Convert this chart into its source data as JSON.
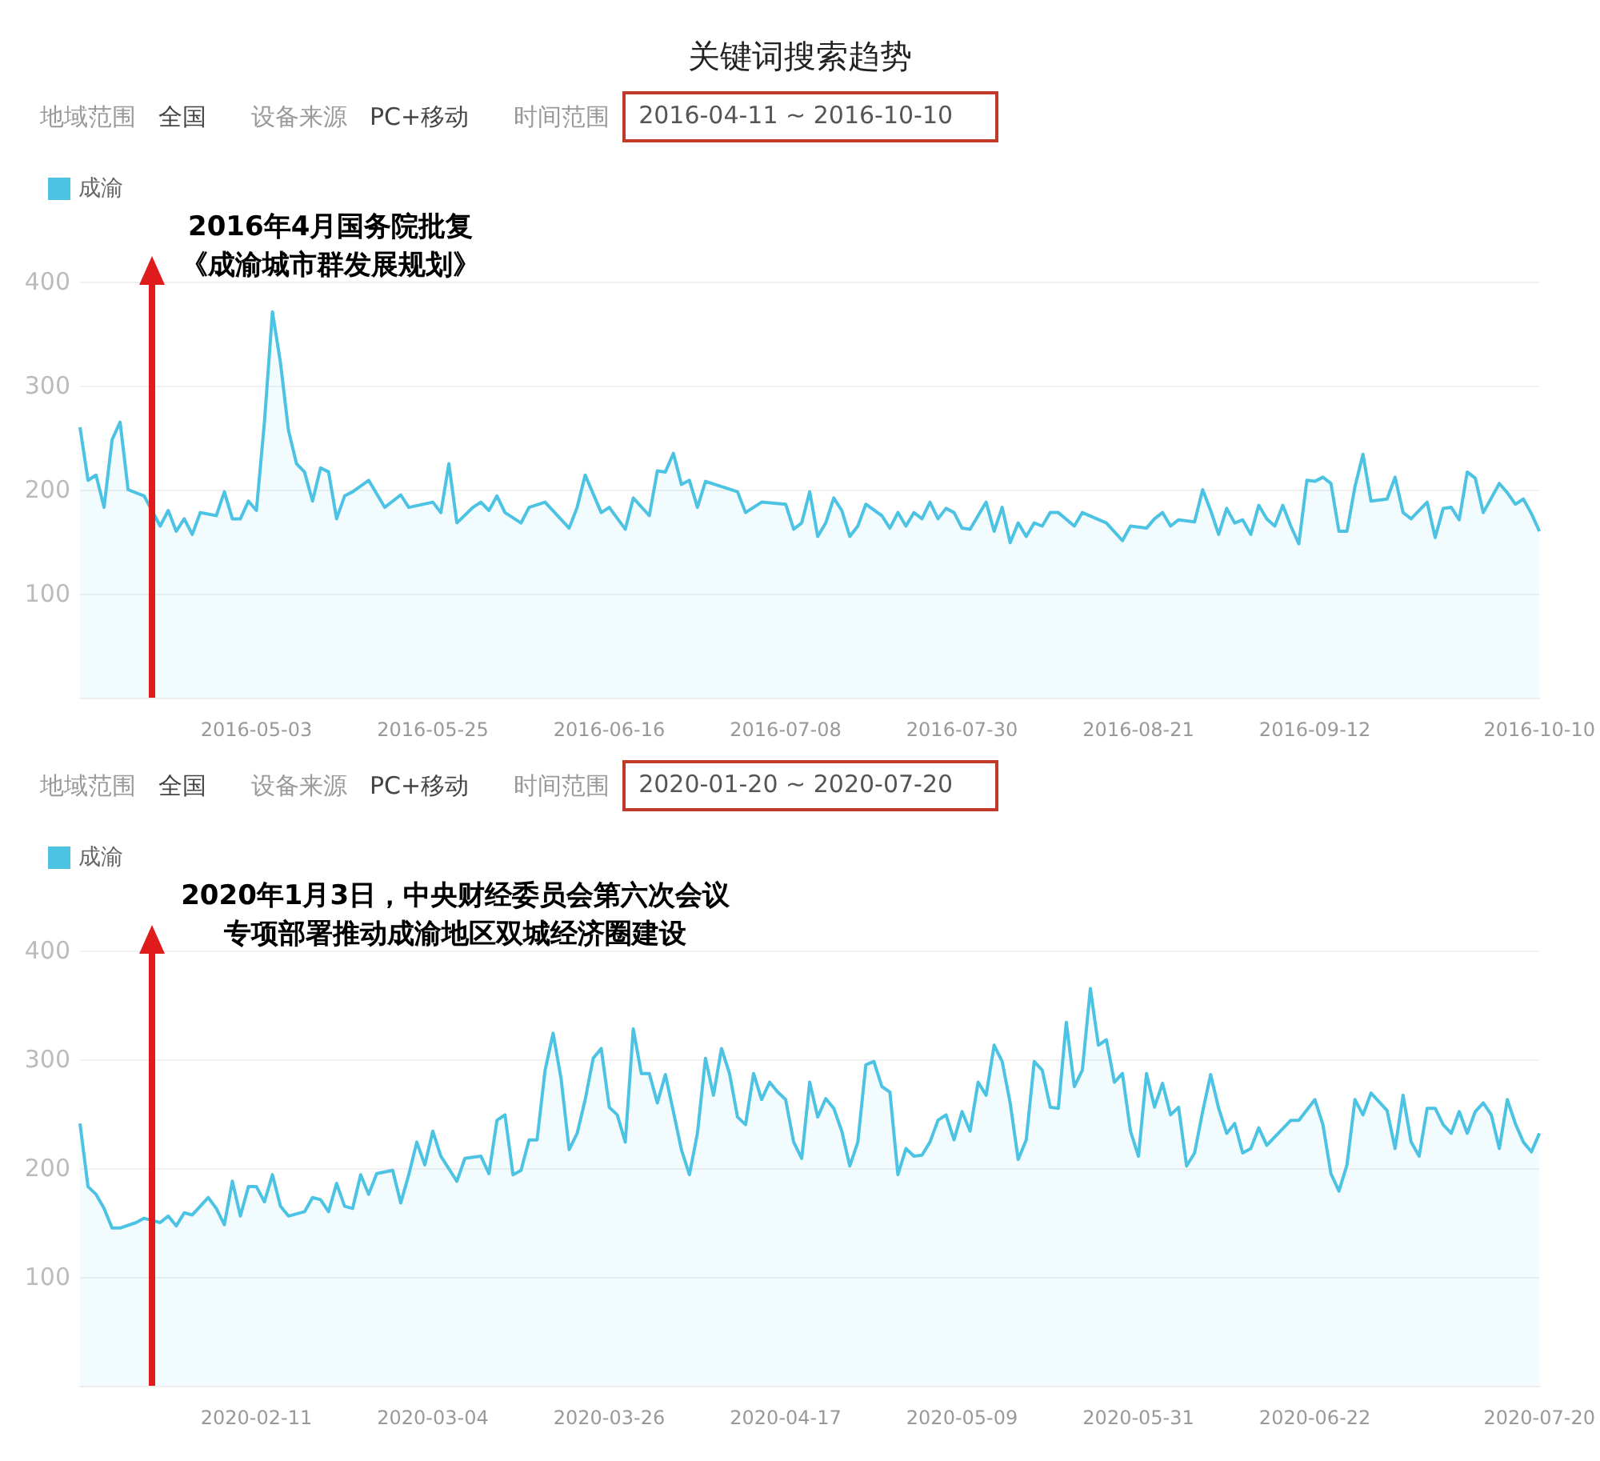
{
  "chart_data": [
    {
      "type": "area",
      "title": "关键词搜索趋势",
      "annotations": [
        "地域范围",
        "全国",
        "设备来源",
        "PC+移动",
        "时间范围",
        "2016-04-11 ~ 2016-10-10",
        "2016年4月国务院批复",
        "《成渝城市群发展规划》"
      ],
      "x": [
        "2016-04-11",
        "2016-04-12",
        "2016-04-13",
        "2016-04-14",
        "2016-04-15",
        "2016-04-16",
        "2016-04-17",
        "2016-04-19",
        "2016-04-21",
        "2016-04-22",
        "2016-04-23",
        "2016-04-24",
        "2016-04-25",
        "2016-04-26",
        "2016-04-28",
        "2016-04-29",
        "2016-04-30",
        "2016-05-01",
        "2016-05-02",
        "2016-05-03",
        "2016-05-04",
        "2016-05-05",
        "2016-05-06",
        "2016-05-07",
        "2016-05-08",
        "2016-05-09",
        "2016-05-10",
        "2016-05-11",
        "2016-05-12",
        "2016-05-13",
        "2016-05-14",
        "2016-05-15",
        "2016-05-17",
        "2016-05-19",
        "2016-05-21",
        "2016-05-22",
        "2016-05-25",
        "2016-05-26",
        "2016-05-27",
        "2016-05-28",
        "2016-05-30",
        "2016-05-31",
        "2016-06-01",
        "2016-06-02",
        "2016-06-03",
        "2016-06-05",
        "2016-06-06",
        "2016-06-08",
        "2016-06-11",
        "2016-06-12",
        "2016-06-13",
        "2016-06-15",
        "2016-06-16",
        "2016-06-18",
        "2016-06-19",
        "2016-06-21",
        "2016-06-22",
        "2016-06-23",
        "2016-06-24",
        "2016-06-25",
        "2016-06-26",
        "2016-06-27",
        "2016-06-28",
        "2016-07-02",
        "2016-07-03",
        "2016-07-05",
        "2016-07-08",
        "2016-07-09",
        "2016-07-10",
        "2016-07-11",
        "2016-07-12",
        "2016-07-13",
        "2016-07-14",
        "2016-07-15",
        "2016-07-16",
        "2016-07-17",
        "2016-07-18",
        "2016-07-20",
        "2016-07-21",
        "2016-07-22",
        "2016-07-23",
        "2016-07-24",
        "2016-07-25",
        "2016-07-26",
        "2016-07-27",
        "2016-07-28",
        "2016-07-29",
        "2016-07-30",
        "2016-07-31",
        "2016-08-02",
        "2016-08-03",
        "2016-08-04",
        "2016-08-05",
        "2016-08-06",
        "2016-08-07",
        "2016-08-08",
        "2016-08-09",
        "2016-08-10",
        "2016-08-11",
        "2016-08-13",
        "2016-08-14",
        "2016-08-17",
        "2016-08-19",
        "2016-08-20",
        "2016-08-22",
        "2016-08-23",
        "2016-08-24",
        "2016-08-25",
        "2016-08-26",
        "2016-08-28",
        "2016-08-29",
        "2016-08-30",
        "2016-08-31",
        "2016-09-01",
        "2016-09-02",
        "2016-09-03",
        "2016-09-04",
        "2016-09-05",
        "2016-09-06",
        "2016-09-07",
        "2016-09-08",
        "2016-09-09",
        "2016-09-10",
        "2016-09-11",
        "2016-09-12",
        "2016-09-13",
        "2016-09-14",
        "2016-09-15",
        "2016-09-16",
        "2016-09-17",
        "2016-09-18",
        "2016-09-19",
        "2016-09-21",
        "2016-09-22",
        "2016-09-23",
        "2016-09-24",
        "2016-09-26",
        "2016-09-27",
        "2016-09-28",
        "2016-09-29",
        "2016-09-30",
        "2016-10-01",
        "2016-10-02",
        "2016-10-03",
        "2016-10-05",
        "2016-10-06",
        "2016-10-07",
        "2016-10-08",
        "2016-10-09",
        "2016-10-10"
      ],
      "series": [
        {
          "name": "成渝",
          "color": "#4cc3e3",
          "values": [
            260,
            209,
            214,
            183,
            248,
            265,
            200,
            194,
            165,
            180,
            160,
            172,
            157,
            178,
            175,
            198,
            172,
            172,
            189,
            180,
            265,
            371,
            322,
            257,
            225,
            217,
            189,
            221,
            217,
            172,
            194,
            198,
            209,
            183,
            195,
            183,
            188,
            178,
            225,
            168,
            183,
            188,
            180,
            194,
            178,
            168,
            183,
            188,
            163,
            183,
            214,
            178,
            183,
            162,
            192,
            175,
            218,
            217,
            235,
            205,
            209,
            183,
            208,
            198,
            178,
            188,
            186,
            162,
            168,
            198,
            155,
            168,
            192,
            180,
            155,
            165,
            186,
            175,
            163,
            178,
            165,
            178,
            172,
            188,
            172,
            182,
            178,
            163,
            162,
            188,
            160,
            183,
            149,
            168,
            155,
            168,
            165,
            178,
            178,
            165,
            178,
            168,
            151,
            165,
            163,
            172,
            178,
            165,
            171,
            169,
            200,
            180,
            157,
            182,
            168,
            171,
            157,
            185,
            172,
            165,
            185,
            165,
            148,
            209,
            208,
            212,
            206,
            160,
            160,
            203,
            234,
            189,
            191,
            212,
            178,
            172,
            188,
            154,
            182,
            183,
            171,
            217,
            211,
            178,
            206,
            197,
            186,
            191,
            177,
            160
          ]
        }
      ],
      "xlim": [
        "2016-04-11",
        "2016-10-10"
      ],
      "xticks": [
        "2016-05-03",
        "2016-05-25",
        "2016-06-16",
        "2016-07-08",
        "2016-07-30",
        "2016-08-21",
        "2016-09-12",
        "2016-10-10"
      ],
      "ylim": [
        0,
        400
      ],
      "yticks": [
        100,
        200,
        300,
        400
      ],
      "grid": "y",
      "legend": "top left",
      "marker": "none",
      "ref_lines": [
        {
          "axis": "x",
          "value": "2016-04-20",
          "color": "#e01b1b"
        }
      ]
    },
    {
      "type": "area",
      "annotations": [
        "地域范围",
        "全国",
        "设备来源",
        "PC+移动",
        "时间范围",
        "2020-01-20 ~ 2020-07-20",
        "2020年1月3日，中央财经委员会第六次会议",
        "专项部署推动成渝地区双城经济圈建设"
      ],
      "x": [
        "2020-01-20",
        "2020-01-21",
        "2020-01-22",
        "2020-01-23",
        "2020-01-24",
        "2020-01-25",
        "2020-01-27",
        "2020-01-28",
        "2020-01-30",
        "2020-01-31",
        "2020-02-01",
        "2020-02-02",
        "2020-02-03",
        "2020-02-05",
        "2020-02-06",
        "2020-02-07",
        "2020-02-08",
        "2020-02-09",
        "2020-02-10",
        "2020-02-11",
        "2020-02-12",
        "2020-02-13",
        "2020-02-14",
        "2020-02-15",
        "2020-02-17",
        "2020-02-18",
        "2020-02-19",
        "2020-02-20",
        "2020-02-21",
        "2020-02-22",
        "2020-02-23",
        "2020-02-24",
        "2020-02-25",
        "2020-02-26",
        "2020-02-28",
        "2020-02-29",
        "2020-03-01",
        "2020-03-02",
        "2020-03-03",
        "2020-03-04",
        "2020-03-05",
        "2020-03-07",
        "2020-03-08",
        "2020-03-10",
        "2020-03-11",
        "2020-03-12",
        "2020-03-13",
        "2020-03-14",
        "2020-03-15",
        "2020-03-16",
        "2020-03-17",
        "2020-03-18",
        "2020-03-19",
        "2020-03-20",
        "2020-03-21",
        "2020-03-22",
        "2020-03-23",
        "2020-03-24",
        "2020-03-25",
        "2020-03-26",
        "2020-03-27",
        "2020-03-28",
        "2020-03-29",
        "2020-03-30",
        "2020-03-31",
        "2020-04-01",
        "2020-04-02",
        "2020-04-03",
        "2020-04-04",
        "2020-04-05",
        "2020-04-06",
        "2020-04-07",
        "2020-04-08",
        "2020-04-09",
        "2020-04-10",
        "2020-04-11",
        "2020-04-12",
        "2020-04-13",
        "2020-04-14",
        "2020-04-15",
        "2020-04-16",
        "2020-04-17",
        "2020-04-18",
        "2020-04-19",
        "2020-04-20",
        "2020-04-21",
        "2020-04-22",
        "2020-04-23",
        "2020-04-24",
        "2020-04-25",
        "2020-04-26",
        "2020-04-27",
        "2020-04-28",
        "2020-04-29",
        "2020-04-30",
        "2020-05-01",
        "2020-05-02",
        "2020-05-03",
        "2020-05-04",
        "2020-05-05",
        "2020-05-06",
        "2020-05-07",
        "2020-05-08",
        "2020-05-09",
        "2020-05-10",
        "2020-05-11",
        "2020-05-12",
        "2020-05-13",
        "2020-05-14",
        "2020-05-15",
        "2020-05-16",
        "2020-05-17",
        "2020-05-18",
        "2020-05-19",
        "2020-05-20",
        "2020-05-21",
        "2020-05-22",
        "2020-05-23",
        "2020-05-24",
        "2020-05-25",
        "2020-05-26",
        "2020-05-27",
        "2020-05-28",
        "2020-05-29",
        "2020-05-30",
        "2020-05-31",
        "2020-06-01",
        "2020-06-02",
        "2020-06-03",
        "2020-06-04",
        "2020-06-05",
        "2020-06-06",
        "2020-06-07",
        "2020-06-08",
        "2020-06-09",
        "2020-06-10",
        "2020-06-11",
        "2020-06-12",
        "2020-06-13",
        "2020-06-14",
        "2020-06-15",
        "2020-06-16",
        "2020-06-19",
        "2020-06-20",
        "2020-06-22",
        "2020-06-23",
        "2020-06-24",
        "2020-06-25",
        "2020-06-26",
        "2020-06-27",
        "2020-06-28",
        "2020-06-29",
        "2020-07-01",
        "2020-07-02",
        "2020-07-03",
        "2020-07-04",
        "2020-07-05",
        "2020-07-06",
        "2020-07-07",
        "2020-07-08",
        "2020-07-09",
        "2020-07-10",
        "2020-07-11",
        "2020-07-12",
        "2020-07-13",
        "2020-07-14",
        "2020-07-15",
        "2020-07-16",
        "2020-07-17",
        "2020-07-18",
        "2020-07-19",
        "2020-07-20"
      ],
      "series": [
        {
          "name": "成渝",
          "color": "#4cc3e3",
          "values": [
            241,
            183,
            176,
            163,
            145,
            145,
            150,
            154,
            150,
            156,
            147,
            159,
            157,
            173,
            163,
            148,
            188,
            156,
            183,
            183,
            169,
            194,
            165,
            156,
            160,
            173,
            171,
            160,
            186,
            165,
            163,
            194,
            176,
            195,
            198,
            168,
            194,
            224,
            203,
            234,
            211,
            188,
            209,
            211,
            195,
            244,
            249,
            194,
            198,
            226,
            226,
            290,
            324,
            282,
            217,
            232,
            263,
            301,
            310,
            256,
            249,
            224,
            328,
            287,
            287,
            260,
            286,
            252,
            217,
            194,
            232,
            301,
            267,
            310,
            287,
            247,
            240,
            287,
            263,
            279,
            270,
            263,
            224,
            209,
            279,
            247,
            264,
            255,
            234,
            202,
            224,
            295,
            298,
            275,
            270,
            194,
            218,
            211,
            212,
            224,
            244,
            249,
            226,
            252,
            234,
            279,
            267,
            313,
            298,
            260,
            208,
            226,
            298,
            290,
            256,
            255,
            334,
            275,
            290,
            365,
            313,
            318,
            279,
            287,
            234,
            211,
            287,
            256,
            278,
            249,
            256,
            202,
            214,
            252,
            286,
            255,
            232,
            241,
            214,
            218,
            237,
            221,
            244,
            244,
            263,
            240,
            195,
            179,
            203,
            263,
            249,
            269,
            253,
            218,
            267,
            224,
            211,
            255,
            255,
            240,
            232,
            252,
            232,
            252,
            260,
            249,
            218,
            263,
            241,
            224,
            215,
            232
          ]
        }
      ],
      "xlim": [
        "2020-01-20",
        "2020-07-20"
      ],
      "xticks": [
        "2020-02-11",
        "2020-03-04",
        "2020-03-26",
        "2020-04-17",
        "2020-05-09",
        "2020-05-31",
        "2020-06-22",
        "2020-07-20"
      ],
      "ylim": [
        0,
        400
      ],
      "yticks": [
        100,
        200,
        300,
        400
      ],
      "grid": "y",
      "legend": "top left",
      "marker": "none",
      "ref_lines": [
        {
          "axis": "x",
          "value": "2020-01-29",
          "color": "#e01b1b"
        }
      ]
    }
  ]
}
